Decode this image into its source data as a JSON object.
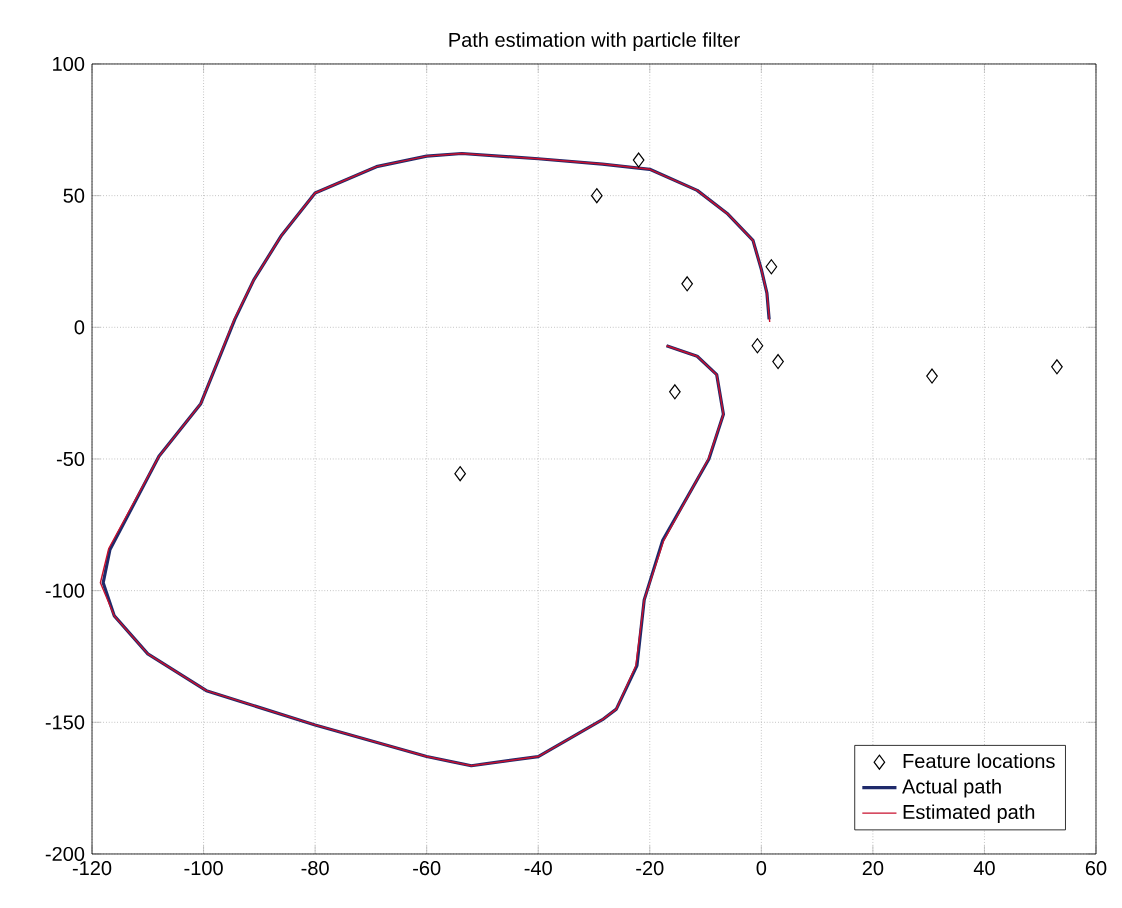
{
  "chart_data": {
    "type": "line",
    "title": "Path estimation with particle filter",
    "xlim": [
      -120,
      60
    ],
    "ylim": [
      -200,
      100
    ],
    "xticks": [
      -120,
      -100,
      -80,
      -60,
      -40,
      -20,
      0,
      20,
      40,
      60
    ],
    "yticks": [
      -200,
      -150,
      -100,
      -50,
      0,
      50,
      100
    ],
    "grid": true,
    "legend": "bottom right",
    "series": [
      {
        "name": "Feature locations",
        "type": "scatter",
        "marker": "diamond",
        "color": "#000000",
        "x": [
          -22,
          -29.5,
          1.8,
          -13.3,
          -0.7,
          3,
          -15.5,
          30.6,
          53,
          -54
        ],
        "values": [
          63.5,
          50,
          23,
          16.5,
          -7,
          -13,
          -24.5,
          -18.5,
          -15,
          -55.6
        ]
      },
      {
        "name": "Actual path",
        "color": "#1f2a6b",
        "x": [
          1.4,
          1,
          0,
          -1.5,
          -6,
          -11.5,
          -20,
          -28.5,
          -40,
          -53.7,
          -60,
          -69,
          -80,
          -86,
          -91,
          -94.4,
          -100.5,
          -108,
          -116.8,
          -118,
          -116,
          -110,
          -99.5,
          -80,
          -60,
          -52,
          -40,
          -28.5,
          -26,
          -22.3,
          -21,
          -17.7,
          -9.4,
          -6.8,
          -8,
          -11.5,
          -17
        ],
        "values": [
          3,
          13,
          22,
          33,
          43,
          52,
          60,
          62,
          64,
          66,
          65,
          61,
          51,
          35,
          18,
          3,
          -29,
          -49,
          -84.5,
          -97,
          -109.6,
          -124,
          -138,
          -151,
          -163,
          -166.5,
          -163,
          -149,
          -145,
          -128.5,
          -103.5,
          -81,
          -50,
          -33,
          -18,
          -11,
          -7
        ]
      },
      {
        "name": "Estimated path",
        "color": "#c8102e",
        "x": [
          1.5,
          1,
          0,
          -1.5,
          -6,
          -11.5,
          -20,
          -28.5,
          -40,
          -53.7,
          -60,
          -69,
          -80,
          -86,
          -91,
          -94.5,
          -100.5,
          -108,
          -117,
          -118.5,
          -116,
          -110,
          -99.5,
          -80,
          -60,
          -52,
          -40,
          -28.5,
          -26,
          -22.5,
          -21,
          -17.5,
          -9.5,
          -6.8,
          -8,
          -11.5,
          -17
        ],
        "values": [
          2,
          13,
          22,
          33,
          43,
          52,
          60,
          62,
          64,
          66,
          65,
          61,
          51,
          35,
          18,
          3,
          -29,
          -49,
          -84,
          -97,
          -109.6,
          -124,
          -138,
          -151,
          -163,
          -166.5,
          -163,
          -149,
          -145,
          -128.5,
          -103.5,
          -81,
          -50,
          -33,
          -18,
          -11,
          -7
        ]
      }
    ]
  }
}
